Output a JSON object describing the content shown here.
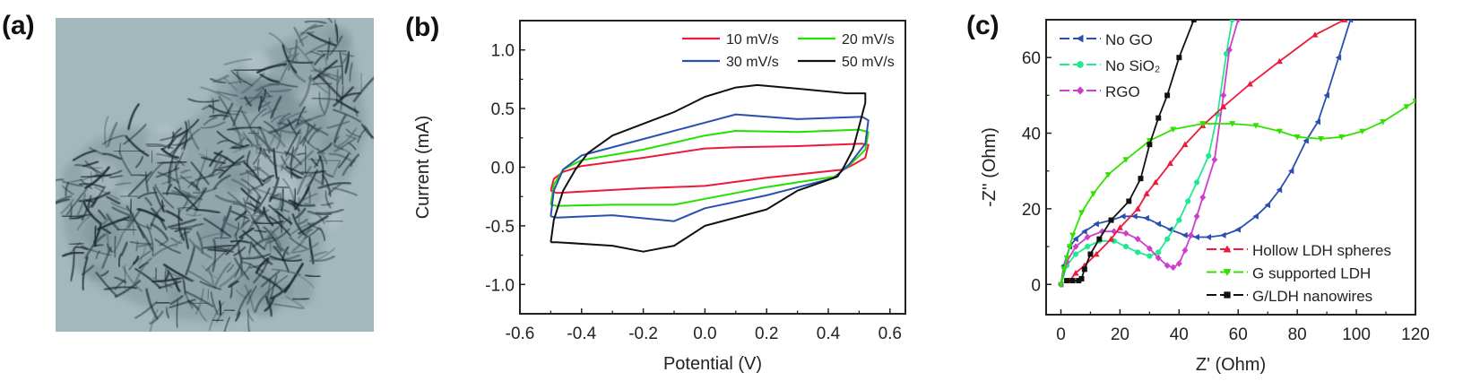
{
  "panels": {
    "a": {
      "label": "(a)"
    },
    "b": {
      "label": "(b)"
    },
    "c": {
      "label": "(c)"
    }
  },
  "chart_data": [
    {
      "panel": "b",
      "type": "line",
      "xlabel": "Potential (V)",
      "ylabel": "Current (mA)",
      "xlim": [
        -0.6,
        0.65
      ],
      "ylim": [
        -1.25,
        1.25
      ],
      "xticks": [
        "-0.6",
        "-0.4",
        "-0.2",
        "0.0",
        "0.2",
        "0.4",
        "0.6"
      ],
      "yticks": [
        "-1.0",
        "-0.5",
        "0.0",
        "0.5",
        "1.0"
      ],
      "xtick_values": [
        -0.6,
        -0.4,
        -0.2,
        0.0,
        0.2,
        0.4,
        0.6
      ],
      "ytick_values": [
        -1.0,
        -0.5,
        0.0,
        0.5,
        1.0
      ],
      "grid": false,
      "legend_position": "top-right",
      "series": [
        {
          "name": "10 mV/s",
          "color": "#ee1a3c",
          "points": [
            [
              -0.5,
              -0.2
            ],
            [
              -0.49,
              -0.1
            ],
            [
              -0.46,
              -0.04
            ],
            [
              -0.4,
              0.01
            ],
            [
              -0.2,
              0.08
            ],
            [
              0.0,
              0.16
            ],
            [
              0.1,
              0.17
            ],
            [
              0.3,
              0.18
            ],
            [
              0.51,
              0.2
            ],
            [
              0.53,
              0.19
            ],
            [
              0.52,
              0.08
            ],
            [
              0.48,
              0.02
            ],
            [
              0.45,
              -0.02
            ],
            [
              0.2,
              -0.09
            ],
            [
              0.0,
              -0.16
            ],
            [
              -0.2,
              -0.18
            ],
            [
              -0.48,
              -0.22
            ],
            [
              -0.5,
              -0.2
            ]
          ]
        },
        {
          "name": "20 mV/s",
          "color": "#22e000",
          "points": [
            [
              -0.5,
              -0.32
            ],
            [
              -0.49,
              -0.15
            ],
            [
              -0.46,
              -0.02
            ],
            [
              -0.4,
              0.06
            ],
            [
              -0.2,
              0.15
            ],
            [
              0.0,
              0.27
            ],
            [
              0.1,
              0.31
            ],
            [
              0.3,
              0.3
            ],
            [
              0.5,
              0.32
            ],
            [
              0.53,
              0.3
            ],
            [
              0.52,
              0.15
            ],
            [
              0.47,
              0.02
            ],
            [
              0.42,
              -0.08
            ],
            [
              0.2,
              -0.17
            ],
            [
              0.0,
              -0.27
            ],
            [
              -0.1,
              -0.32
            ],
            [
              -0.3,
              -0.32
            ],
            [
              -0.48,
              -0.33
            ],
            [
              -0.5,
              -0.32
            ]
          ]
        },
        {
          "name": "30 mV/s",
          "color": "#2a4fb0",
          "points": [
            [
              -0.5,
              -0.42
            ],
            [
              -0.49,
              -0.2
            ],
            [
              -0.46,
              -0.02
            ],
            [
              -0.4,
              0.1
            ],
            [
              -0.2,
              0.24
            ],
            [
              0.0,
              0.38
            ],
            [
              0.1,
              0.45
            ],
            [
              0.3,
              0.41
            ],
            [
              0.51,
              0.43
            ],
            [
              0.53,
              0.4
            ],
            [
              0.52,
              0.2
            ],
            [
              0.47,
              0.03
            ],
            [
              0.42,
              -0.09
            ],
            [
              0.2,
              -0.24
            ],
            [
              0.0,
              -0.35
            ],
            [
              -0.1,
              -0.46
            ],
            [
              -0.3,
              -0.41
            ],
            [
              -0.48,
              -0.43
            ],
            [
              -0.5,
              -0.42
            ]
          ]
        },
        {
          "name": "50 mV/s",
          "color": "#111111",
          "points": [
            [
              -0.5,
              -0.64
            ],
            [
              -0.49,
              -0.45
            ],
            [
              -0.46,
              -0.2
            ],
            [
              -0.42,
              -0.02
            ],
            [
              -0.38,
              0.12
            ],
            [
              -0.3,
              0.27
            ],
            [
              -0.2,
              0.37
            ],
            [
              -0.1,
              0.47
            ],
            [
              0.0,
              0.6
            ],
            [
              0.1,
              0.68
            ],
            [
              0.17,
              0.7
            ],
            [
              0.3,
              0.67
            ],
            [
              0.46,
              0.63
            ],
            [
              0.52,
              0.63
            ],
            [
              0.52,
              0.55
            ],
            [
              0.5,
              0.35
            ],
            [
              0.48,
              0.15
            ],
            [
              0.45,
              0.0
            ],
            [
              0.43,
              -0.08
            ],
            [
              0.3,
              -0.2
            ],
            [
              0.2,
              -0.36
            ],
            [
              0.0,
              -0.5
            ],
            [
              -0.1,
              -0.67
            ],
            [
              -0.2,
              -0.72
            ],
            [
              -0.3,
              -0.67
            ],
            [
              -0.48,
              -0.64
            ],
            [
              -0.5,
              -0.64
            ]
          ]
        }
      ]
    },
    {
      "panel": "c",
      "type": "scatter",
      "xlabel": "Z' (Ohm)",
      "ylabel": "-Z'' (Ohm)",
      "xlim": [
        -5,
        120
      ],
      "ylim": [
        -8,
        70
      ],
      "xticks": [
        "0",
        "20",
        "40",
        "60",
        "80",
        "100",
        "120"
      ],
      "yticks": [
        "0",
        "20",
        "40",
        "60"
      ],
      "xtick_values": [
        0,
        20,
        40,
        60,
        80,
        100,
        120
      ],
      "ytick_values": [
        0,
        20,
        40,
        60
      ],
      "grid": false,
      "legend_position": "top-left and bottom-right",
      "series": [
        {
          "name": "No GO",
          "color": "#2a4fb0",
          "marker": "triangle-left",
          "legend": "top-left",
          "points": [
            [
              0,
              0
            ],
            [
              1,
              5
            ],
            [
              3,
              10
            ],
            [
              5,
              12
            ],
            [
              8,
              14
            ],
            [
              12,
              16
            ],
            [
              17,
              17
            ],
            [
              21,
              18
            ],
            [
              25,
              18
            ],
            [
              29,
              17.5
            ],
            [
              33,
              16
            ],
            [
              37,
              14.5
            ],
            [
              42,
              13
            ],
            [
              46,
              12.5
            ],
            [
              50,
              12.5
            ],
            [
              55,
              13
            ],
            [
              60,
              14.5
            ],
            [
              66,
              18
            ],
            [
              70,
              21
            ],
            [
              74,
              25
            ],
            [
              78,
              30
            ],
            [
              83,
              38
            ],
            [
              87,
              43
            ],
            [
              90,
              50
            ],
            [
              94,
              60
            ],
            [
              98,
              70
            ]
          ]
        },
        {
          "name": "No SiO₂",
          "color": "#22e890",
          "marker": "circle",
          "legend": "top-left",
          "points": [
            [
              0,
              0
            ],
            [
              2,
              5
            ],
            [
              5,
              8
            ],
            [
              9,
              10
            ],
            [
              13,
              11.5
            ],
            [
              18,
              11.5
            ],
            [
              22,
              10
            ],
            [
              26,
              8.5
            ],
            [
              30,
              7.5
            ],
            [
              33,
              8.5
            ],
            [
              36,
              12
            ],
            [
              40,
              17
            ],
            [
              43,
              22
            ],
            [
              46,
              27
            ],
            [
              50,
              34
            ],
            [
              53,
              45
            ],
            [
              56,
              61
            ],
            [
              58,
              70
            ]
          ]
        },
        {
          "name": "RGO",
          "color": "#cc3fcc",
          "marker": "diamond",
          "legend": "top-left",
          "points": [
            [
              0,
              0
            ],
            [
              2,
              6
            ],
            [
              5,
              10
            ],
            [
              9,
              12.5
            ],
            [
              14,
              14
            ],
            [
              18,
              14
            ],
            [
              22,
              13.5
            ],
            [
              26,
              12
            ],
            [
              30,
              9.5
            ],
            [
              33,
              7
            ],
            [
              36,
              5
            ],
            [
              38,
              4.5
            ],
            [
              40,
              5.5
            ],
            [
              42,
              9
            ],
            [
              44,
              13
            ],
            [
              46,
              18
            ],
            [
              48,
              23
            ],
            [
              52,
              33
            ],
            [
              55,
              50
            ],
            [
              57,
              62
            ],
            [
              60,
              70
            ]
          ]
        },
        {
          "name": "Hollow LDH spheres",
          "color": "#ee1a3c",
          "marker": "triangle-up",
          "legend": "bottom-right",
          "points": [
            [
              3,
              1
            ],
            [
              5,
              3
            ],
            [
              8,
              5
            ],
            [
              12,
              8
            ],
            [
              17,
              12
            ],
            [
              20,
              15
            ],
            [
              26,
              20
            ],
            [
              29,
              24
            ],
            [
              32,
              27
            ],
            [
              37,
              32
            ],
            [
              42,
              37
            ],
            [
              48,
              42
            ],
            [
              55,
              47
            ],
            [
              64,
              53
            ],
            [
              74,
              59
            ],
            [
              86,
              66
            ],
            [
              96,
              70
            ]
          ]
        },
        {
          "name": "G supported LDH",
          "color": "#33e000",
          "marker": "triangle-down",
          "legend": "bottom-right",
          "points": [
            [
              0,
              0
            ],
            [
              1,
              4
            ],
            [
              2,
              7
            ],
            [
              3,
              10
            ],
            [
              4,
              13
            ],
            [
              7,
              19
            ],
            [
              11,
              24
            ],
            [
              16,
              29
            ],
            [
              22,
              33
            ],
            [
              30,
              38
            ],
            [
              38,
              41
            ],
            [
              48,
              42.5
            ],
            [
              58,
              42.5
            ],
            [
              66,
              42
            ],
            [
              74,
              40.5
            ],
            [
              80,
              39
            ],
            [
              88,
              38.5
            ],
            [
              95,
              39
            ],
            [
              102,
              40.5
            ],
            [
              109,
              43
            ],
            [
              117,
              47
            ],
            [
              120,
              48.5
            ]
          ]
        },
        {
          "name": "G/LDH nanowires",
          "color": "#111111",
          "marker": "square",
          "legend": "bottom-right",
          "points": [
            [
              2,
              1
            ],
            [
              4,
              1
            ],
            [
              6,
              1
            ],
            [
              7,
              1.5
            ],
            [
              8,
              4
            ],
            [
              10,
              8
            ],
            [
              13,
              12
            ],
            [
              17,
              17
            ],
            [
              23,
              22
            ],
            [
              27,
              28
            ],
            [
              30,
              37
            ],
            [
              33,
              44
            ],
            [
              36,
              50
            ],
            [
              40,
              60
            ],
            [
              45,
              70
            ]
          ]
        }
      ]
    }
  ]
}
